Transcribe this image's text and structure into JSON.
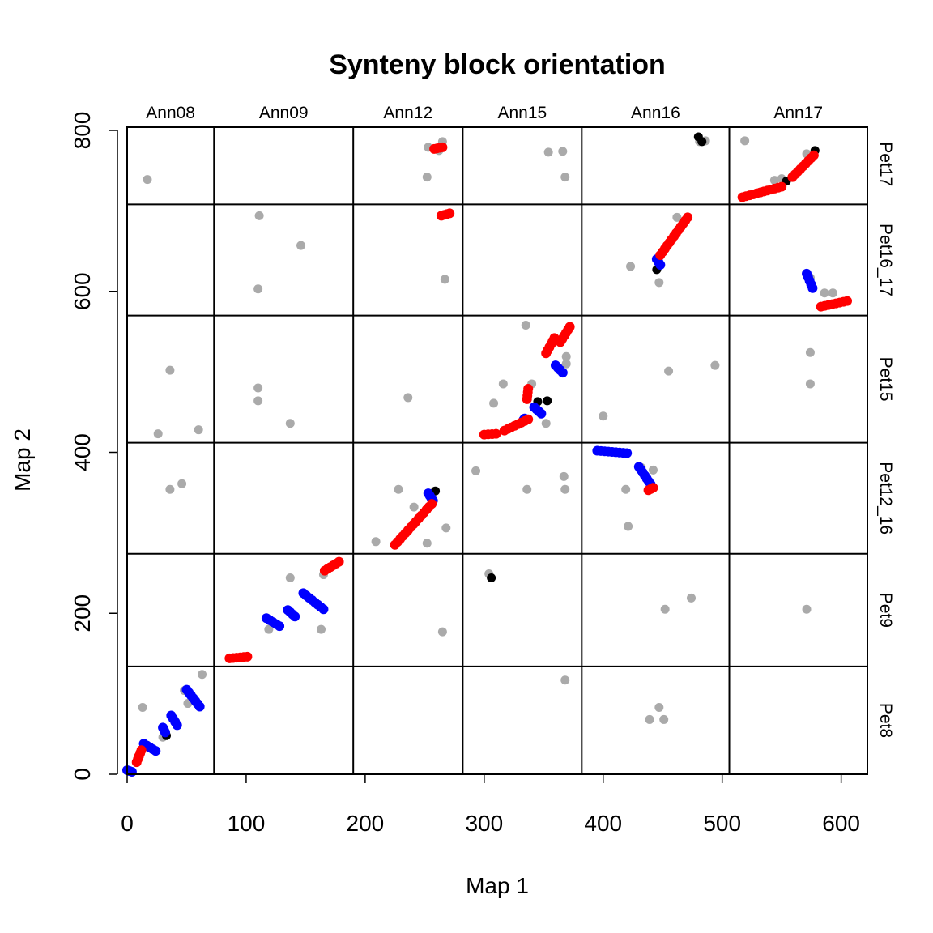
{
  "chart_data": {
    "type": "scatter",
    "title": "Synteny block orientation",
    "xlabel": "Map 1",
    "ylabel": "Map 2",
    "xlim": [
      0,
      622
    ],
    "ylim": [
      0,
      808
    ],
    "x_ticks": [
      0,
      100,
      200,
      300,
      400,
      500,
      600
    ],
    "y_ticks": [
      0,
      200,
      400,
      600,
      800
    ],
    "grid": false,
    "column_groups": [
      {
        "label": "Ann08",
        "range": [
          0,
          73
        ]
      },
      {
        "label": "Ann09",
        "range": [
          73,
          190
        ]
      },
      {
        "label": "Ann12",
        "range": [
          190,
          282
        ]
      },
      {
        "label": "Ann15",
        "range": [
          282,
          382
        ]
      },
      {
        "label": "Ann16",
        "range": [
          382,
          506
        ]
      },
      {
        "label": "Ann17",
        "range": [
          506,
          622
        ]
      }
    ],
    "row_groups": [
      {
        "label": "Pet8",
        "range": [
          0,
          134
        ]
      },
      {
        "label": "Pet9",
        "range": [
          134,
          274
        ]
      },
      {
        "label": "Pet12_16",
        "range": [
          274,
          412
        ]
      },
      {
        "label": "Pet15",
        "range": [
          412,
          570
        ]
      },
      {
        "label": "Pet16_17",
        "range": [
          570,
          708
        ]
      },
      {
        "label": "Pet17",
        "range": [
          708,
          808
        ]
      }
    ],
    "colors": {
      "same": "#ff0000",
      "inverted": "#0000ff",
      "ambiguous": "#000000",
      "unassigned": "#aaaaaa"
    },
    "series": [
      {
        "color_key": "same",
        "segments": [
          [
            [
              8,
              15
            ],
            [
              12,
              30
            ],
            [
              36,
              47
            ],
            [
              48,
              80
            ]
          ],
          [
            [
              86,
              144
            ],
            [
              101,
              146
            ],
            [
              110,
              150
            ],
            [
              110,
              178
            ]
          ],
          [
            [
              166,
              253
            ],
            [
              178,
              264
            ]
          ],
          [
            [
              225,
              285
            ],
            [
              256,
              336
            ]
          ],
          [
            [
              258,
              777
            ],
            [
              265,
              779
            ]
          ],
          [
            [
              264,
              694
            ],
            [
              271,
              697
            ]
          ],
          [
            [
              300,
              422
            ],
            [
              310,
              423
            ]
          ],
          [
            [
              317,
              427
            ],
            [
              337,
              441
            ]
          ],
          [
            [
              336,
              466
            ],
            [
              337,
              479
            ]
          ],
          [
            [
              352,
              523
            ],
            [
              359,
              542
            ]
          ],
          [
            [
              364,
              537
            ],
            [
              372,
              556
            ]
          ],
          [
            [
              438,
              353
            ],
            [
              442,
              356
            ]
          ],
          [
            [
              448,
              645
            ],
            [
              471,
              692
            ]
          ],
          [
            [
              517,
              717
            ],
            [
              550,
              730
            ]
          ],
          [
            [
              559,
              742
            ],
            [
              577,
              769
            ]
          ],
          [
            [
              583,
              581
            ],
            [
              605,
              588
            ]
          ]
        ]
      },
      {
        "color_key": "inverted",
        "segments": [
          [
            [
              0,
              5
            ],
            [
              4,
              3
            ]
          ],
          [
            [
              14,
              38
            ],
            [
              24,
              29
            ]
          ],
          [
            [
              30,
              58
            ],
            [
              32,
              52
            ]
          ],
          [
            [
              37,
              73
            ],
            [
              42,
              61
            ]
          ],
          [
            [
              50,
              105
            ],
            [
              61,
              84
            ]
          ],
          [
            [
              117,
              194
            ],
            [
              128,
              184
            ]
          ],
          [
            [
              135,
              204
            ],
            [
              141,
              196
            ]
          ],
          [
            [
              148,
              225
            ],
            [
              165,
              205
            ]
          ],
          [
            [
              253,
              349
            ],
            [
              257,
              340
            ]
          ],
          [
            [
              333,
              440
            ],
            [
              334,
              442
            ]
          ],
          [
            [
              342,
              456
            ],
            [
              348,
              448
            ]
          ],
          [
            [
              360,
              508
            ],
            [
              366,
              499
            ]
          ],
          [
            [
              395,
              402
            ],
            [
              420,
              399
            ]
          ],
          [
            [
              430,
              382
            ],
            [
              440,
              360
            ]
          ],
          [
            [
              445,
              640
            ],
            [
              448,
              633
            ]
          ],
          [
            [
              571,
              622
            ],
            [
              576,
              604
            ]
          ]
        ]
      },
      {
        "color_key": "ambiguous",
        "points": [
          [
            33,
            48
          ],
          [
            259,
            352
          ],
          [
            306,
            244
          ],
          [
            345,
            463
          ],
          [
            353,
            464
          ],
          [
            445,
            627
          ],
          [
            480,
            792
          ],
          [
            483,
            786
          ],
          [
            554,
            737
          ],
          [
            578,
            775
          ]
        ]
      },
      {
        "color_key": "unassigned",
        "points": [
          [
            17,
            739
          ],
          [
            36,
            502
          ],
          [
            26,
            423
          ],
          [
            60,
            428
          ],
          [
            36,
            354
          ],
          [
            46,
            361
          ],
          [
            13,
            83
          ],
          [
            48,
            104
          ],
          [
            63,
            124
          ],
          [
            51,
            88
          ],
          [
            30,
            46
          ],
          [
            111,
            694
          ],
          [
            146,
            657
          ],
          [
            110,
            603
          ],
          [
            110,
            480
          ],
          [
            110,
            464
          ],
          [
            137,
            436
          ],
          [
            137,
            244
          ],
          [
            163,
            180
          ],
          [
            165,
            248
          ],
          [
            119,
            180
          ],
          [
            253,
            779
          ],
          [
            265,
            786
          ],
          [
            252,
            742
          ],
          [
            262,
            775
          ],
          [
            268,
            696
          ],
          [
            267,
            615
          ],
          [
            236,
            468
          ],
          [
            209,
            289
          ],
          [
            228,
            354
          ],
          [
            268,
            306
          ],
          [
            252,
            287
          ],
          [
            241,
            332
          ],
          [
            265,
            177
          ],
          [
            354,
            773
          ],
          [
            366,
            774
          ],
          [
            368,
            742
          ],
          [
            335,
            558
          ],
          [
            369,
            519
          ],
          [
            369,
            510
          ],
          [
            316,
            485
          ],
          [
            308,
            461
          ],
          [
            340,
            485
          ],
          [
            352,
            436
          ],
          [
            293,
            377
          ],
          [
            367,
            370
          ],
          [
            368,
            354
          ],
          [
            336,
            354
          ],
          [
            304,
            249
          ],
          [
            368,
            117
          ],
          [
            481,
            786
          ],
          [
            486,
            787
          ],
          [
            423,
            631
          ],
          [
            447,
            611
          ],
          [
            462,
            692
          ],
          [
            400,
            445
          ],
          [
            455,
            501
          ],
          [
            494,
            508
          ],
          [
            432,
            381
          ],
          [
            442,
            378
          ],
          [
            419,
            354
          ],
          [
            421,
            308
          ],
          [
            452,
            205
          ],
          [
            474,
            219
          ],
          [
            439,
            68
          ],
          [
            447,
            83
          ],
          [
            451,
            68
          ],
          [
            519,
            787
          ],
          [
            571,
            771
          ],
          [
            574,
            617
          ],
          [
            586,
            598
          ],
          [
            593,
            598
          ],
          [
            574,
            524
          ],
          [
            574,
            485
          ],
          [
            571,
            205
          ],
          [
            550,
            740
          ],
          [
            544,
            738
          ]
        ]
      }
    ]
  }
}
